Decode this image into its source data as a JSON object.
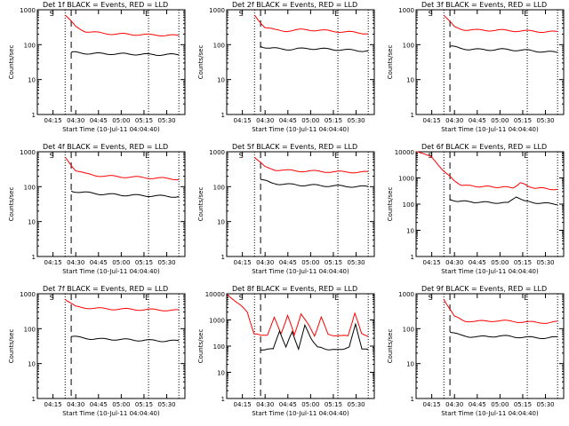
{
  "chart_data": [
    {
      "type": "line",
      "title": "Det 1f BLACK = Events, RED = LLD",
      "ylabel": "Counts/sec",
      "xlabel": "Start Time (10-Jul-11 04:04:40)",
      "x_ticks": [
        "04:15",
        "04:30",
        "04:45",
        "05:00",
        "05:15",
        "05:30"
      ],
      "y_ticks": [
        "1",
        "10",
        "100",
        "1000"
      ],
      "ylim": [
        1,
        1000
      ],
      "y_scale": "log",
      "markers": {
        "s": "04:15",
        "e": "05:18"
      },
      "lines": {
        "dashed": "04:27",
        "dotted": [
          "04:23",
          "05:18",
          "05:38"
        ]
      },
      "series": [
        {
          "color": "#ff0000",
          "start": "04:23",
          "end": "05:38",
          "values": [
            700,
            330,
            240,
            220,
            210,
            200,
            200,
            195,
            190,
            190,
            185,
            180
          ]
        },
        {
          "color": "#000000",
          "start": "04:27",
          "end": "05:38",
          "values": [
            60,
            58,
            56,
            55,
            55,
            54,
            54,
            53,
            52,
            52,
            52,
            52
          ]
        }
      ]
    },
    {
      "type": "line",
      "title": "Det 2f BLACK = Events, RED = LLD",
      "ylabel": "Counts/sec",
      "xlabel": "Start Time (10-Jul-11 04:04:40)",
      "x_ticks": [
        "04:15",
        "04:30",
        "04:45",
        "05:00",
        "05:15",
        "05:30"
      ],
      "y_ticks": [
        "1",
        "10",
        "100",
        "1000"
      ],
      "ylim": [
        1,
        1000
      ],
      "y_scale": "log",
      "markers": {
        "s": "04:15",
        "e": "05:18"
      },
      "lines": {
        "dashed": "04:27",
        "dotted": [
          "04:23",
          "05:18",
          "05:38"
        ]
      },
      "series": [
        {
          "color": "#ff0000",
          "start": "04:23",
          "end": "05:38",
          "values": [
            700,
            320,
            260,
            250,
            260,
            270,
            260,
            250,
            240,
            230,
            220,
            210
          ]
        },
        {
          "color": "#000000",
          "start": "04:27",
          "end": "05:38",
          "values": [
            90,
            80,
            75,
            74,
            76,
            78,
            76,
            74,
            72,
            70,
            68,
            66
          ]
        }
      ]
    },
    {
      "type": "line",
      "title": "Det 3f BLACK = Events, RED = LLD",
      "ylabel": "Counts/sec",
      "xlabel": "Start Time (10-Jul-11 04:04:40)",
      "x_ticks": [
        "04:15",
        "04:30",
        "04:45",
        "05:00",
        "05:15",
        "05:30"
      ],
      "y_ticks": [
        "1",
        "10",
        "100",
        "1000"
      ],
      "ylim": [
        1,
        1000
      ],
      "y_scale": "log",
      "markers": {
        "s": "04:15",
        "e": "05:18"
      },
      "lines": {
        "dashed": "04:27",
        "dotted": [
          "04:23",
          "05:18",
          "05:38"
        ]
      },
      "series": [
        {
          "color": "#ff0000",
          "start": "04:23",
          "end": "05:38",
          "values": [
            700,
            320,
            270,
            260,
            260,
            260,
            255,
            250,
            245,
            240,
            235,
            230
          ]
        },
        {
          "color": "#000000",
          "start": "04:27",
          "end": "05:38",
          "values": [
            90,
            80,
            74,
            72,
            72,
            73,
            72,
            70,
            68,
            65,
            62,
            60
          ]
        }
      ]
    },
    {
      "type": "line",
      "title": "Det 4f BLACK = Events, RED = LLD",
      "ylabel": "Counts/sec",
      "xlabel": "Start Time (10-Jul-11 04:04:40)",
      "x_ticks": [
        "04:15",
        "04:30",
        "04:45",
        "05:00",
        "05:15",
        "05:30"
      ],
      "y_ticks": [
        "1",
        "10",
        "100",
        "1000"
      ],
      "ylim": [
        1,
        1000
      ],
      "y_scale": "log",
      "markers": {
        "s": "04:15",
        "e": "05:18"
      },
      "lines": {
        "dashed": "04:27",
        "dotted": [
          "04:23",
          "05:18",
          "05:38"
        ]
      },
      "series": [
        {
          "color": "#ff0000",
          "start": "04:23",
          "end": "05:38",
          "values": [
            700,
            300,
            230,
            210,
            200,
            195,
            190,
            185,
            180,
            175,
            170,
            165
          ]
        },
        {
          "color": "#000000",
          "start": "04:27",
          "end": "05:38",
          "values": [
            75,
            70,
            65,
            62,
            60,
            58,
            57,
            56,
            55,
            54,
            53,
            52
          ]
        }
      ]
    },
    {
      "type": "line",
      "title": "Det 5f BLACK = Events, RED = LLD",
      "ylabel": "Counts/sec",
      "xlabel": "Start Time (10-Jul-11 04:04:40)",
      "x_ticks": [
        "04:15",
        "04:30",
        "04:45",
        "05:00",
        "05:15",
        "05:30"
      ],
      "y_ticks": [
        "1",
        "10",
        "100",
        "1000"
      ],
      "ylim": [
        1,
        1000
      ],
      "y_scale": "log",
      "markers": {
        "s": "04:15",
        "e": "05:18"
      },
      "lines": {
        "dashed": "04:27",
        "dotted": [
          "04:23",
          "05:18",
          "05:38"
        ]
      },
      "series": [
        {
          "color": "#ff0000",
          "start": "04:23",
          "end": "05:38",
          "values": [
            700,
            360,
            310,
            290,
            285,
            280,
            275,
            270,
            265,
            265,
            260,
            260
          ]
        },
        {
          "color": "#000000",
          "start": "04:27",
          "end": "05:38",
          "values": [
            160,
            130,
            120,
            115,
            112,
            110,
            108,
            106,
            104,
            102,
            100,
            100
          ]
        }
      ]
    },
    {
      "type": "line",
      "title": "Det 6f BLACK = Events, RED = LLD",
      "ylabel": "Counts/sec",
      "xlabel": "Start Time (10-Jul-11 04:04:40)",
      "x_ticks": [
        "04:15",
        "04:30",
        "04:45",
        "05:00",
        "05:15",
        "05:30"
      ],
      "y_ticks": [
        "1",
        "10",
        "100",
        "1000",
        "10000"
      ],
      "ylim": [
        1,
        10000
      ],
      "y_scale": "log",
      "markers": {
        "s": "04:15",
        "e": "05:18"
      },
      "lines": {
        "dashed": "04:27",
        "dotted": [
          "04:23",
          "05:18",
          "05:38"
        ]
      },
      "series": [
        {
          "color": "#ff0000",
          "start": "04:05",
          "end": "05:38",
          "values": [
            10000,
            9000,
            6000,
            3000,
            1500,
            800,
            550,
            500,
            480,
            470,
            460,
            450,
            440,
            430,
            650,
            480,
            420,
            400,
            380,
            360
          ]
        },
        {
          "color": "#000000",
          "start": "04:27",
          "end": "05:38",
          "values": [
            150,
            130,
            125,
            120,
            118,
            115,
            112,
            110,
            200,
            130,
            115,
            110,
            105,
            100
          ]
        }
      ]
    },
    {
      "type": "line",
      "title": "Det 7f BLACK = Events, RED = LLD",
      "ylabel": "Counts/sec",
      "xlabel": "Start Time (10-Jul-11 04:04:40)",
      "x_ticks": [
        "04:15",
        "04:30",
        "04:45",
        "05:00",
        "05:15",
        "05:30"
      ],
      "y_ticks": [
        "1",
        "10",
        "100",
        "1000"
      ],
      "ylim": [
        1,
        1000
      ],
      "y_scale": "log",
      "markers": {
        "s": "04:15",
        "e": "05:18"
      },
      "lines": {
        "dashed": "04:27",
        "dotted": [
          "04:23",
          "05:18",
          "05:38"
        ]
      },
      "series": [
        {
          "color": "#ff0000",
          "start": "04:23",
          "end": "05:38",
          "values": [
            700,
            420,
            400,
            380,
            370,
            365,
            360,
            355,
            350,
            345,
            340,
            330
          ]
        },
        {
          "color": "#000000",
          "start": "04:27",
          "end": "05:38",
          "values": [
            60,
            55,
            52,
            50,
            50,
            49,
            48,
            47,
            46,
            45,
            45,
            44
          ]
        }
      ]
    },
    {
      "type": "line",
      "title": "Det 8f BLACK = Events, RED = LLD",
      "ylabel": "Counts/sec",
      "xlabel": "Start Time (10-Jul-11 04:04:40)",
      "x_ticks": [
        "04:15",
        "04:30",
        "04:45",
        "05:00",
        "05:15",
        "05:30"
      ],
      "y_ticks": [
        "1",
        "10",
        "100",
        "1000",
        "10000"
      ],
      "ylim": [
        1,
        10000
      ],
      "y_scale": "log",
      "markers": {
        "s": "04:15",
        "e": "05:18"
      },
      "lines": {
        "dashed": "04:27",
        "dotted": [
          "04:23",
          "05:18",
          "05:38"
        ]
      },
      "series": [
        {
          "color": "#ff0000",
          "start": "04:05",
          "end": "05:38",
          "values": [
            9000,
            6000,
            3500,
            2000,
            300,
            250,
            280,
            1200,
            300,
            1500,
            260,
            1800,
            700,
            250,
            1300,
            280,
            260,
            240,
            260,
            1800,
            300,
            250
          ]
        },
        {
          "color": "#000000",
          "start": "04:27",
          "end": "05:38",
          "values": [
            70,
            80,
            75,
            400,
            90,
            350,
            80,
            600,
            200,
            90,
            80,
            75,
            70,
            80,
            90,
            700,
            80,
            70
          ]
        }
      ]
    },
    {
      "type": "line",
      "title": "Det 9f BLACK = Events, RED = LLD",
      "ylabel": "Counts/sec",
      "xlabel": "Start Time (10-Jul-11 04:04:40)",
      "x_ticks": [
        "04:15",
        "04:30",
        "04:45",
        "05:00",
        "05:15",
        "05:30"
      ],
      "y_ticks": [
        "1",
        "10",
        "100",
        "1000"
      ],
      "ylim": [
        1,
        1000
      ],
      "y_scale": "log",
      "markers": {
        "s": "04:15",
        "e": "05:18"
      },
      "lines": {
        "dashed": "04:27",
        "dotted": [
          "04:23",
          "05:18",
          "05:38"
        ]
      },
      "series": [
        {
          "color": "#ff0000",
          "start": "04:23",
          "end": "05:38",
          "values": [
            700,
            220,
            170,
            160,
            165,
            170,
            165,
            160,
            155,
            150,
            150,
            155
          ]
        },
        {
          "color": "#000000",
          "start": "04:27",
          "end": "05:38",
          "values": [
            80,
            65,
            60,
            58,
            60,
            62,
            60,
            58,
            56,
            55,
            55,
            56
          ]
        }
      ]
    }
  ]
}
